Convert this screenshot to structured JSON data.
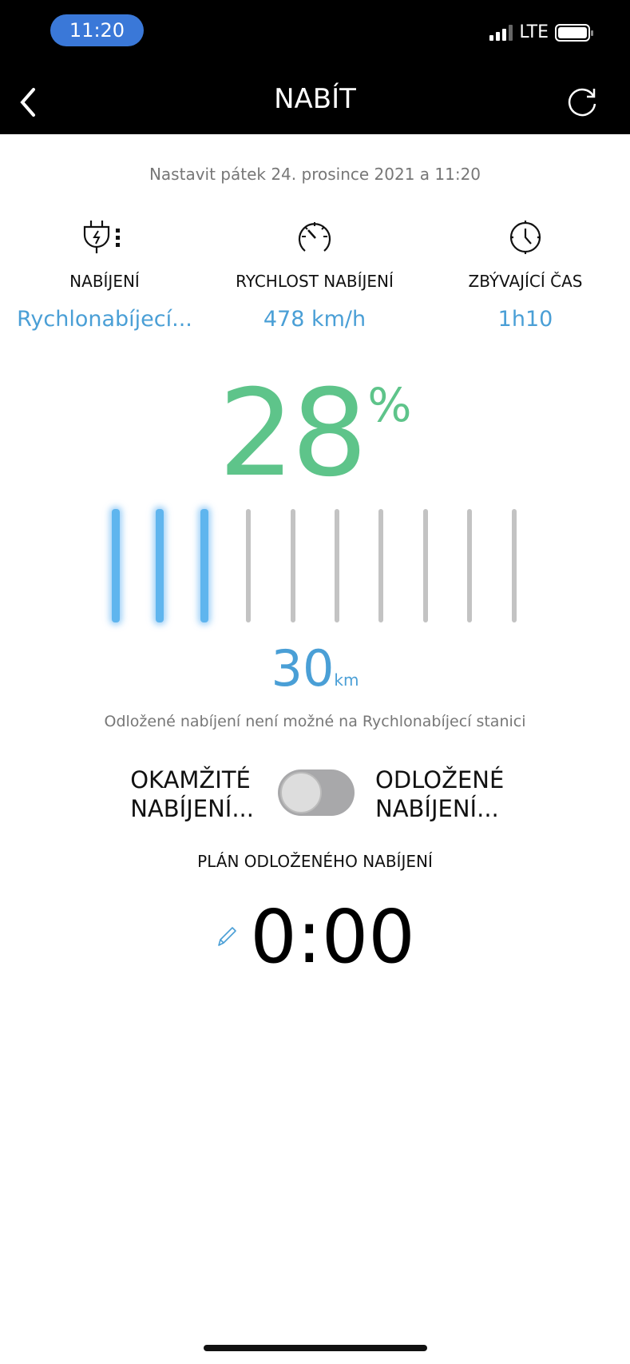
{
  "status_bar": {
    "time": "11:20",
    "network": "LTE",
    "signal_bars": 3,
    "battery_level": 1.0
  },
  "header": {
    "title": "NABÍT",
    "back_icon": "chevron-left-icon",
    "refresh_icon": "refresh-icon"
  },
  "date_text": "Nastavit pátek 24. prosince 2021 a 11:20",
  "info": [
    {
      "icon": "plug-charging-icon",
      "label": "NABÍJENÍ",
      "value": "Rychlonabíjecí..."
    },
    {
      "icon": "speedometer-icon",
      "label": "RYCHLOST NABÍJENÍ",
      "value": "478 km/h"
    },
    {
      "icon": "clock-icon",
      "label": "ZBÝVAJÍCÍ ČAS",
      "value": "1h10"
    }
  ],
  "battery": {
    "percent": "28",
    "percent_symbol": "%",
    "segments_total": 10,
    "segments_filled": 3,
    "range_value": "30",
    "range_unit": "km",
    "color_percent": "#5ec48a",
    "color_active": "#5fb5ee"
  },
  "note": "Odložené nabíjení není možné na Rychlonabíjecí stanici",
  "mode_toggle": {
    "left_label_1": "OKAMŽITÉ",
    "left_label_2": "NABÍJENÍ...",
    "right_label_1": "ODLOŽENÉ",
    "right_label_2": "NABÍJENÍ...",
    "state": "left"
  },
  "plan": {
    "title": "PLÁN ODLOŽENÉHO NABÍJENÍ",
    "time": "0:00",
    "edit_icon": "pencil-icon"
  }
}
